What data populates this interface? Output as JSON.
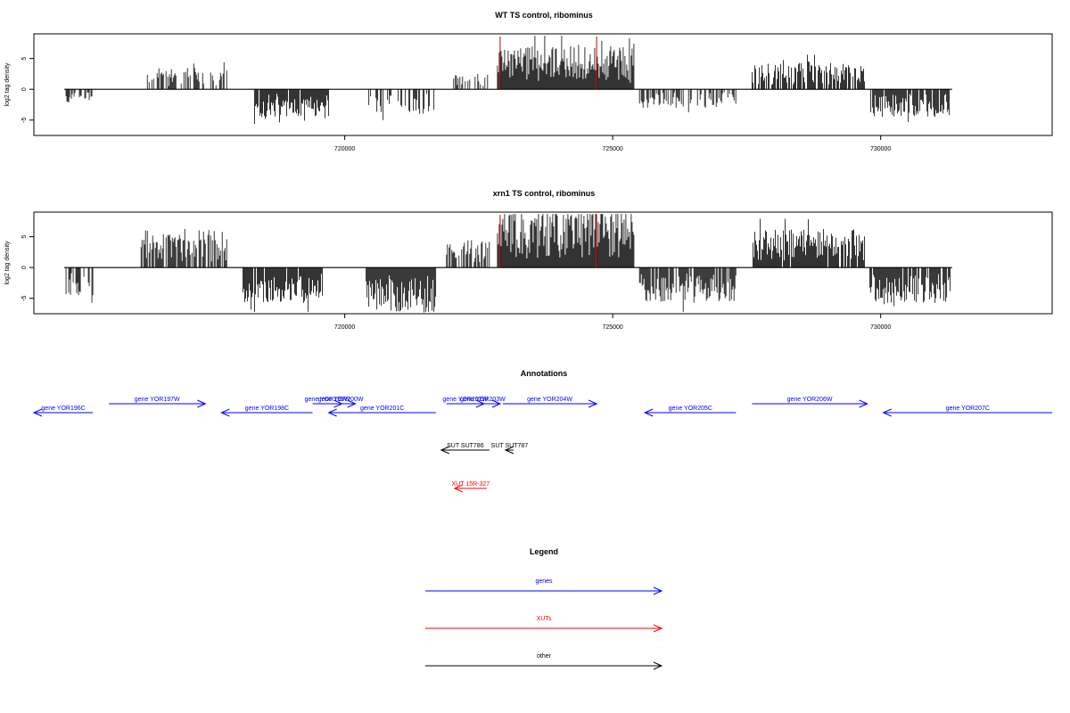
{
  "panels": [
    {
      "title": "WT TS control, ribominus",
      "ylabel": "log2 tag density",
      "xlim": [
        714200,
        733200
      ],
      "ylim": [
        -7.5,
        9
      ],
      "yticks": [
        -5,
        0,
        5
      ],
      "xticks": [
        720000,
        725000,
        730000
      ],
      "bar_seed": 11,
      "bar_scale": 1.0
    },
    {
      "title": "xrn1 TS control, ribominus",
      "ylabel": "log2 tag density",
      "xlim": [
        714200,
        733200
      ],
      "ylim": [
        -7.5,
        9
      ],
      "yticks": [
        -5,
        0,
        5
      ],
      "xticks": [
        720000,
        725000,
        730000
      ],
      "bar_seed": 29,
      "bar_scale": 1.15
    }
  ],
  "chart_data": [
    {
      "type": "bar",
      "title": "WT TS control, ribominus",
      "ylabel": "log2 tag density",
      "xlim": [
        714200,
        733200
      ],
      "ylim": [
        -7.5,
        9
      ],
      "regions": [
        {
          "start": 714800,
          "end": 715300,
          "strand": "-",
          "max": 2.5,
          "density": 0.6
        },
        {
          "start": 716300,
          "end": 717800,
          "strand": "+",
          "max": 3.5,
          "density": 0.5
        },
        {
          "start": 718300,
          "end": 719700,
          "strand": "-",
          "max": 4.5,
          "density": 0.9
        },
        {
          "start": 720400,
          "end": 721700,
          "strand": "-",
          "max": 4.0,
          "density": 0.5
        },
        {
          "start": 722000,
          "end": 722700,
          "strand": "+",
          "max": 2.5,
          "density": 0.4
        },
        {
          "start": 722850,
          "end": 725400,
          "strand": "+",
          "max": 7.0,
          "density": 1.0
        },
        {
          "start": 725500,
          "end": 727300,
          "strand": "-",
          "max": 3.0,
          "density": 0.5
        },
        {
          "start": 727600,
          "end": 729700,
          "strand": "+",
          "max": 4.5,
          "density": 0.8
        },
        {
          "start": 729800,
          "end": 731300,
          "strand": "-",
          "max": 4.5,
          "density": 0.9
        }
      ],
      "highlights": [
        722900,
        724700
      ]
    },
    {
      "type": "bar",
      "title": "xrn1 TS control, ribominus",
      "ylabel": "log2 tag density",
      "xlim": [
        714200,
        733200
      ],
      "ylim": [
        -7.5,
        9
      ],
      "regions": [
        {
          "start": 714800,
          "end": 715300,
          "strand": "-",
          "max": 4.0,
          "density": 0.7
        },
        {
          "start": 716200,
          "end": 717800,
          "strand": "+",
          "max": 5.5,
          "density": 0.8
        },
        {
          "start": 718100,
          "end": 719600,
          "strand": "-",
          "max": 5.0,
          "density": 0.9
        },
        {
          "start": 720400,
          "end": 721700,
          "strand": "-",
          "max": 6.5,
          "density": 1.0
        },
        {
          "start": 721900,
          "end": 722700,
          "strand": "+",
          "max": 4.0,
          "density": 0.6
        },
        {
          "start": 722850,
          "end": 725400,
          "strand": "+",
          "max": 8.5,
          "density": 1.0
        },
        {
          "start": 725500,
          "end": 727300,
          "strand": "-",
          "max": 5.0,
          "density": 0.8
        },
        {
          "start": 727600,
          "end": 729700,
          "strand": "+",
          "max": 5.5,
          "density": 0.9
        },
        {
          "start": 729800,
          "end": 731300,
          "strand": "-",
          "max": 5.0,
          "density": 0.9
        }
      ],
      "highlights": [
        722900,
        724700
      ]
    }
  ],
  "annotations": {
    "title": "Annotations",
    "features": [
      {
        "label": "gene YOR196C",
        "start": 714200,
        "end": 715300,
        "strand": "-",
        "kind": "gene",
        "row": 1
      },
      {
        "label": "gene YOR197W",
        "start": 715600,
        "end": 717400,
        "strand": "+",
        "kind": "gene",
        "row": 0
      },
      {
        "label": "gene YOR198C",
        "start": 717700,
        "end": 719400,
        "strand": "-",
        "kind": "gene",
        "row": 1
      },
      {
        "label": "gene YOR199W",
        "start": 719400,
        "end": 719950,
        "strand": "+",
        "kind": "gene",
        "row": 0
      },
      {
        "label": "gene YOR200W",
        "start": 719650,
        "end": 720200,
        "strand": "+",
        "kind": "gene",
        "row": 0
      },
      {
        "label": "gene YOR201C",
        "start": 719700,
        "end": 721700,
        "strand": "-",
        "kind": "gene",
        "row": 1
      },
      {
        "label": "gene YOR202W",
        "start": 721900,
        "end": 722600,
        "strand": "+",
        "kind": "gene",
        "row": 0
      },
      {
        "label": "gene YOR203W",
        "start": 722250,
        "end": 722900,
        "strand": "+",
        "kind": "gene",
        "row": 0
      },
      {
        "label": "gene YOR204W",
        "start": 722950,
        "end": 724700,
        "strand": "+",
        "kind": "gene",
        "row": 0
      },
      {
        "label": "gene YOR205C",
        "start": 725600,
        "end": 727300,
        "strand": "-",
        "kind": "gene",
        "row": 1
      },
      {
        "label": "gene YOR206W",
        "start": 727600,
        "end": 729750,
        "strand": "+",
        "kind": "gene",
        "row": 0
      },
      {
        "label": "gene YOR207C",
        "start": 730050,
        "end": 733200,
        "strand": "-",
        "kind": "gene",
        "row": 1
      },
      {
        "label": "SUT SUT786",
        "start": 721800,
        "end": 722700,
        "strand": "-",
        "kind": "other",
        "row": 2
      },
      {
        "label": "SUT SUT787",
        "start": 723000,
        "end": 723150,
        "strand": "-",
        "kind": "other",
        "row": 2
      },
      {
        "label": "XUT 15R-327",
        "start": 722050,
        "end": 722650,
        "strand": "-",
        "kind": "xut",
        "row": 3
      }
    ]
  },
  "legend": {
    "title": "Legend",
    "items": [
      {
        "label": "genes",
        "color": "#0000ff"
      },
      {
        "label": "XUTs",
        "color": "#ff0000"
      },
      {
        "label": "other",
        "color": "#000000"
      }
    ]
  },
  "colors": {
    "gene": "#0000ff",
    "xut": "#ff0000",
    "other": "#000000",
    "highlight": "#cc0000",
    "bars": "#000000"
  }
}
